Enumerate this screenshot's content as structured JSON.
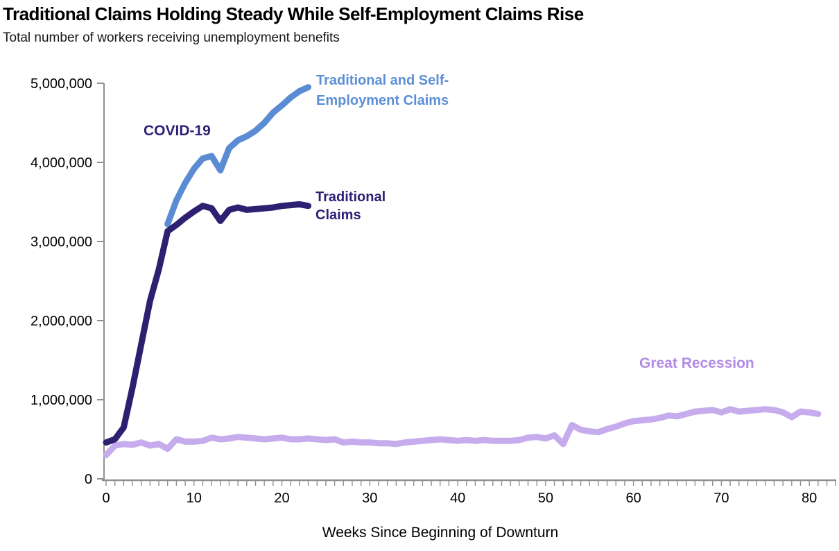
{
  "title": "Traditional Claims Holding Steady While Self-Employment Claims Rise",
  "subtitle": "Total number of workers receiving unemployment benefits",
  "chart_data": {
    "type": "line",
    "xlabel": "Weeks Since Beginning of Downturn",
    "ylabel": "",
    "xlim": [
      0,
      83
    ],
    "ylim": [
      0,
      5000000
    ],
    "grid": false,
    "legend_position": "inline-annotations",
    "axis_color": "#8f8f8f",
    "y_ticks": [
      {
        "value": 0,
        "label": "0"
      },
      {
        "value": 1000000,
        "label": "1,000,000"
      },
      {
        "value": 2000000,
        "label": "2,000,000"
      },
      {
        "value": 3000000,
        "label": "3,000,000"
      },
      {
        "value": 4000000,
        "label": "4,000,000"
      },
      {
        "value": 5000000,
        "label": "5,000,000"
      }
    ],
    "x_ticks": [
      {
        "value": 0,
        "label": "0"
      },
      {
        "value": 10,
        "label": "10"
      },
      {
        "value": 20,
        "label": "20"
      },
      {
        "value": 30,
        "label": "30"
      },
      {
        "value": 40,
        "label": "40"
      },
      {
        "value": 50,
        "label": "50"
      },
      {
        "value": 60,
        "label": "60"
      },
      {
        "value": 70,
        "label": "70"
      },
      {
        "value": 80,
        "label": "80"
      }
    ],
    "x_minor_tick_every": 1,
    "x_minor_tick_max": 83,
    "series": [
      {
        "id": "great-recession",
        "name": "Great Recession",
        "color": "#c6acec",
        "stroke_width": 9,
        "x_start": 0,
        "values": [
          300000,
          420000,
          440000,
          430000,
          460000,
          420000,
          440000,
          380000,
          500000,
          470000,
          470000,
          480000,
          520000,
          500000,
          510000,
          530000,
          520000,
          510000,
          500000,
          510000,
          520000,
          500000,
          500000,
          510000,
          500000,
          490000,
          500000,
          460000,
          470000,
          460000,
          460000,
          450000,
          450000,
          440000,
          460000,
          470000,
          480000,
          490000,
          500000,
          490000,
          480000,
          490000,
          480000,
          490000,
          480000,
          480000,
          480000,
          490000,
          520000,
          530000,
          510000,
          550000,
          440000,
          680000,
          620000,
          600000,
          590000,
          630000,
          660000,
          700000,
          730000,
          740000,
          750000,
          770000,
          800000,
          790000,
          820000,
          850000,
          860000,
          870000,
          840000,
          880000,
          850000,
          860000,
          870000,
          880000,
          870000,
          840000,
          780000,
          850000,
          840000,
          820000
        ]
      },
      {
        "id": "combined-claims",
        "name": "Traditional and Self-Employment Claims",
        "color": "#5b8cd3",
        "stroke_width": 9,
        "x_start": 7,
        "values": [
          3220000,
          3520000,
          3740000,
          3920000,
          4050000,
          4080000,
          3900000,
          4180000,
          4280000,
          4330000,
          4400000,
          4500000,
          4630000,
          4720000,
          4820000,
          4900000,
          4950000
        ]
      },
      {
        "id": "traditional-claims",
        "name": "Traditional Claims",
        "color": "#2f1f70",
        "stroke_width": 9,
        "x_start": 0,
        "values": [
          460000,
          500000,
          650000,
          1150000,
          1700000,
          2250000,
          2650000,
          3130000,
          3210000,
          3300000,
          3380000,
          3450000,
          3420000,
          3260000,
          3400000,
          3430000,
          3400000,
          3410000,
          3420000,
          3430000,
          3450000,
          3460000,
          3470000,
          3450000
        ]
      }
    ],
    "annotations": {
      "covid": {
        "text": "COVID-19",
        "color": "#2e2077"
      },
      "combined": {
        "line1": "Traditional and Self-",
        "line2": "Employment Claims",
        "color": "#5b8fd6"
      },
      "traditional": {
        "line1": "Traditional",
        "line2": "Claims",
        "color": "#2e2077"
      },
      "recession": {
        "text": "Great Recession",
        "color": "#b28ae4"
      }
    }
  }
}
